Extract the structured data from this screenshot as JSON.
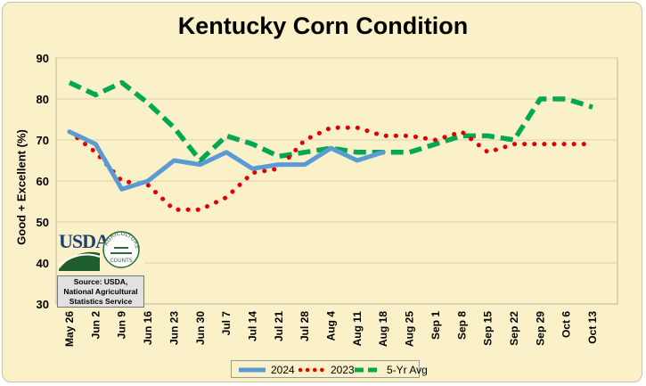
{
  "title": "Kentucky Corn Condition",
  "chart_data": {
    "type": "line",
    "title": "Kentucky Corn Condition",
    "xlabel": "",
    "ylabel": "Good + Excellent (%)",
    "ylim": [
      30,
      90
    ],
    "yticks": [
      30,
      40,
      50,
      60,
      70,
      80,
      90
    ],
    "categories": [
      "May 26",
      "Jun 2",
      "Jun 9",
      "Jun 16",
      "Jun 23",
      "Jun 30",
      "Jul 7",
      "Jul 14",
      "Jul 21",
      "Jul 28",
      "Aug 4",
      "Aug 11",
      "Aug 18",
      "Aug 25",
      "Sep 1",
      "Sep 8",
      "Sep 15",
      "Sep 22",
      "Sep 29",
      "Oct 6",
      "Oct 13"
    ],
    "grid": true,
    "legend_position": "bottom",
    "series": [
      {
        "name": "2024",
        "color": "#5b9bd5",
        "style": "solid",
        "values": [
          72,
          69,
          58,
          60,
          65,
          64,
          67,
          63,
          64,
          64,
          68,
          65,
          67,
          null,
          null,
          null,
          null,
          null,
          null,
          null,
          null
        ]
      },
      {
        "name": "2023",
        "color": "#e00000",
        "style": "dotted",
        "values": [
          72,
          67,
          60,
          59,
          53,
          53,
          56,
          62,
          63,
          70,
          73,
          73,
          71,
          71,
          70,
          72,
          67,
          69,
          69,
          69,
          69
        ]
      },
      {
        "name": "5-Yr Avg",
        "color": "#00a84f",
        "style": "dashed",
        "values": [
          84,
          81,
          84,
          79,
          73,
          65,
          71,
          69,
          66,
          67,
          68,
          67,
          67,
          67,
          69,
          71,
          71,
          70,
          80,
          80,
          78
        ]
      }
    ]
  },
  "logo": {
    "usda": "USDA",
    "arc": "AGRICULTURE",
    "counts": "COUNTS"
  },
  "source": {
    "line1": "Source: USDA,",
    "line2": "National Agricultural",
    "line3": "Statistics Service"
  },
  "legend": {
    "item1": "2024",
    "item2": "2023",
    "item3": "5-Yr Avg"
  }
}
